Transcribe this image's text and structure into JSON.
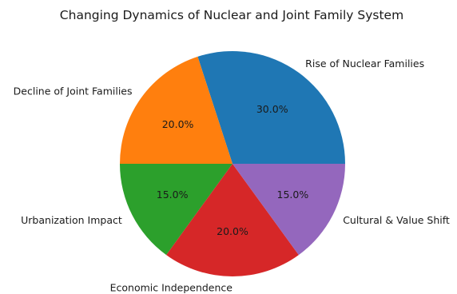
{
  "chart_data": {
    "type": "pie",
    "title": "Changing Dynamics of Nuclear and Joint Family System",
    "categories": [
      "Rise of Nuclear Families",
      "Decline of Joint Families",
      "Urbanization Impact",
      "Economic Independence",
      "Cultural & Value Shift"
    ],
    "values": [
      30,
      20,
      15,
      20,
      15
    ],
    "percent_labels": [
      "30.0%",
      "20.0%",
      "15.0%",
      "20.0%",
      "15.0%"
    ],
    "colors": [
      "#1f77b4",
      "#ff7f0e",
      "#2ca02c",
      "#d62728",
      "#9467bd"
    ],
    "start_angle_deg": 0,
    "direction": "counterclockwise"
  }
}
